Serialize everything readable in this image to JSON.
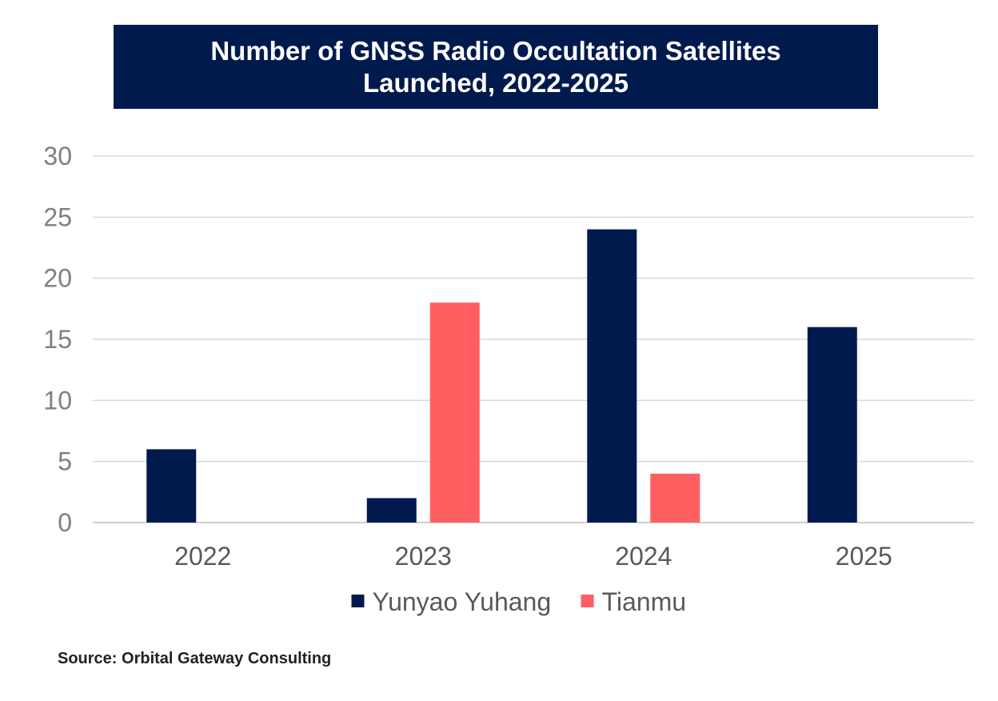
{
  "chart_data": {
    "type": "bar",
    "title": [
      "Number of GNSS Radio Occultation Satellites",
      "Launched, 2022-2025"
    ],
    "categories": [
      "2022",
      "2023",
      "2024",
      "2025"
    ],
    "series": [
      {
        "name": "Yunyao Yuhang",
        "values": [
          6,
          2,
          24,
          16
        ],
        "color": "#001a4e"
      },
      {
        "name": "Tianmu",
        "values": [
          0,
          18,
          4,
          0
        ],
        "color": "#ff5f61"
      }
    ],
    "ylim": [
      0,
      30
    ],
    "yticks": [
      0,
      5,
      10,
      15,
      20,
      25,
      30
    ],
    "grid": true,
    "legend": "bottom-center"
  },
  "source": "Source: Orbital Gateway Consulting"
}
